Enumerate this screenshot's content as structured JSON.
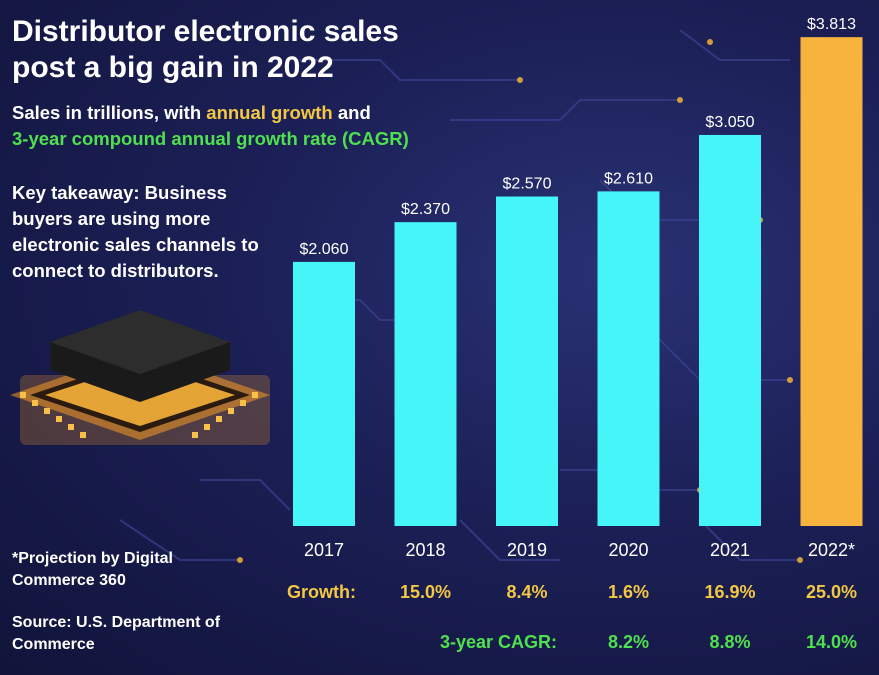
{
  "header": {
    "title": "Distributor electronic sales post a big gain in 2022",
    "subtitle_prefix": "Sales in trillions, with ",
    "subtitle_growth": "annual growth",
    "subtitle_and": " and",
    "subtitle_cagr": "3-year compound annual growth rate (CAGR)"
  },
  "takeaway": "Key takeaway: Business buyers are using more electronic sales channels to connect to distributors.",
  "footnotes": {
    "projection": "*Projection by Digital Commerce 360",
    "source": "Source: U.S. Department of Commerce"
  },
  "colors": {
    "bar": "#45f5f8",
    "projection_bar": "#f8b33e",
    "growth": "#f2c744",
    "cagr": "#4ee04e",
    "background": "#1b1f55"
  },
  "chart_data": {
    "type": "bar",
    "title": "Distributor electronic sales post a big gain in 2022",
    "ylabel": "Sales in trillions",
    "categories": [
      "2017",
      "2018",
      "2019",
      "2020",
      "2021",
      "2022*"
    ],
    "values": [
      2.06,
      2.37,
      2.57,
      2.61,
      3.05,
      3.813
    ],
    "value_labels": [
      "$2.060",
      "$2.370",
      "$2.570",
      "$2.610",
      "$3.050",
      "$3.813"
    ],
    "ylim": [
      0,
      3.9
    ],
    "grid": false,
    "projected": [
      false,
      false,
      false,
      false,
      false,
      true
    ],
    "growth_label": "Growth:",
    "growth": [
      "15.0%",
      "8.4%",
      "1.6%",
      "16.9%",
      "25.0%"
    ],
    "growth_categories": [
      "2018",
      "2019",
      "2020",
      "2021",
      "2022*"
    ],
    "cagr_label": "3-year CAGR:",
    "cagr": [
      "8.2%",
      "8.8%",
      "14.0%"
    ],
    "cagr_categories": [
      "2020",
      "2021",
      "2022*"
    ]
  }
}
